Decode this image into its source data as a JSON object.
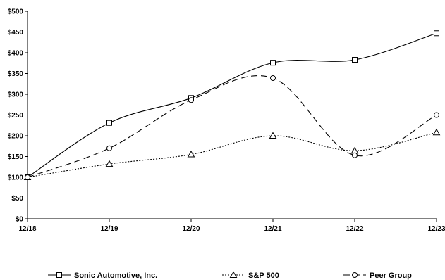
{
  "chart_data": {
    "type": "line",
    "x": [
      "12/18",
      "12/19",
      "12/20",
      "12/21",
      "12/22",
      "12/23"
    ],
    "ylim": [
      0,
      500
    ],
    "yticks": [
      "$0",
      "$50",
      "$100",
      "$150",
      "$200",
      "$250",
      "$300",
      "$350",
      "$400",
      "$450",
      "$500"
    ],
    "ytick_values": [
      0,
      50,
      100,
      150,
      200,
      250,
      300,
      350,
      400,
      450,
      500
    ],
    "grid": false,
    "legend_position": "bottom",
    "series": [
      {
        "name": "Sonic Automotive, Inc.",
        "values": [
          100,
          231,
          291,
          376,
          383,
          447
        ],
        "marker": "square",
        "dash": "solid",
        "color": "#000000"
      },
      {
        "name": "S&P 500",
        "values": [
          100,
          132,
          155,
          200,
          164,
          208
        ],
        "marker": "triangle",
        "dash": "dotted",
        "color": "#000000"
      },
      {
        "name": "Peer Group",
        "values": [
          100,
          170,
          286,
          339,
          153,
          250
        ],
        "marker": "circle",
        "dash": "dashed",
        "color": "#000000"
      }
    ]
  }
}
